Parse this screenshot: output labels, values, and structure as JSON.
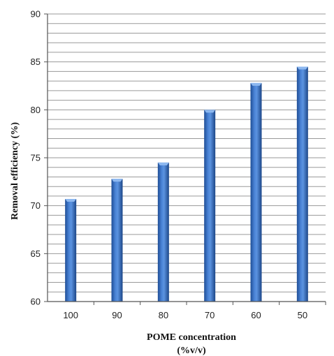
{
  "chart_data": {
    "type": "bar",
    "categories": [
      "100",
      "90",
      "80",
      "70",
      "60",
      "50"
    ],
    "values": [
      70.7,
      72.8,
      74.5,
      80.0,
      82.8,
      84.5
    ],
    "title": "",
    "xlabel_line1": "POME concentration",
    "xlabel_line2": "(%v/v)",
    "ylabel": "Removal efficiency (%)",
    "ylim": [
      60,
      90
    ],
    "yticks": [
      "60",
      "65",
      "70",
      "75",
      "80",
      "85",
      "90"
    ],
    "minor_grid_step": 1,
    "grid": true,
    "legend": "none",
    "colors": {
      "bar_dark": "#1f4e96",
      "bar_mid": "#4a83d6",
      "bar_light": "#8db8f0",
      "grid": "#9a9a9a",
      "axis": "#555555"
    }
  }
}
